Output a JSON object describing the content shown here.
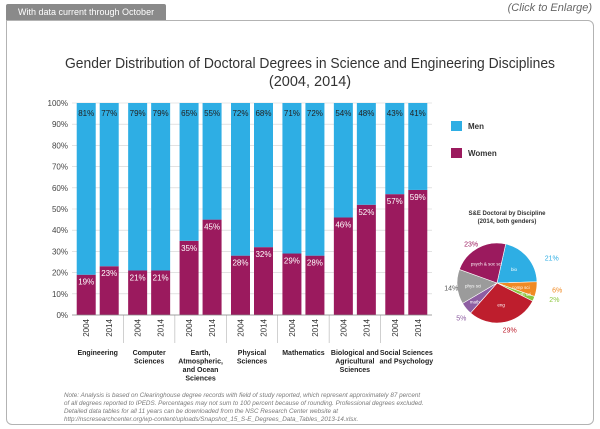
{
  "header": {
    "tab_label": "With data current through October 2014",
    "enlarge_label": "(Click to Enlarge)"
  },
  "chart_data": [
    {
      "type": "bar",
      "stacked": true,
      "title": "Gender Distribution of Doctoral Degrees in Science and Engineering Disciplines",
      "subtitle": "(2004, 2014)",
      "groups": [
        {
          "name": "Engineering",
          "name_lines": [
            "Engineering"
          ]
        },
        {
          "name": "Computer Sciences",
          "name_lines": [
            "Computer",
            "Sciences"
          ]
        },
        {
          "name": "Earth, Atmospheric, and Ocean Sciences",
          "name_lines": [
            "Earth,",
            "Atmospheric,",
            "and Ocean",
            "Sciences"
          ]
        },
        {
          "name": "Physical Sciences",
          "name_lines": [
            "Physical",
            "Sciences"
          ]
        },
        {
          "name": "Mathematics",
          "name_lines": [
            "Mathematics"
          ]
        },
        {
          "name": "Biological and Agricultural Sciences",
          "name_lines": [
            "Biological and",
            "Agricultural",
            "Sciences"
          ]
        },
        {
          "name": "Social Sciences and Psychology",
          "name_lines": [
            "Social Sciences",
            "and Psychology"
          ]
        }
      ],
      "years": [
        "2004",
        "2014"
      ],
      "series": [
        {
          "name": "Women",
          "color": "#9b1a5e",
          "values": [
            [
              19,
              23
            ],
            [
              21,
              21
            ],
            [
              35,
              45
            ],
            [
              28,
              32
            ],
            [
              29,
              28
            ],
            [
              46,
              52
            ],
            [
              57,
              59
            ]
          ]
        },
        {
          "name": "Men",
          "color": "#2eaee4",
          "values": [
            [
              81,
              77
            ],
            [
              79,
              79
            ],
            [
              65,
              55
            ],
            [
              72,
              68
            ],
            [
              71,
              72
            ],
            [
              54,
              48
            ],
            [
              43,
              41
            ]
          ]
        }
      ],
      "value_labels": {
        "women": [
          [
            "19%",
            "23%"
          ],
          [
            "21%",
            "21%"
          ],
          [
            "35%",
            "45%"
          ],
          [
            "28%",
            "32%"
          ],
          [
            "29%",
            "28%"
          ],
          [
            "46%",
            "52%"
          ],
          [
            "57%",
            "59%"
          ]
        ],
        "men": [
          [
            "81%",
            "77%"
          ],
          [
            "79%",
            "79%"
          ],
          [
            "65%",
            "55%"
          ],
          [
            "72%",
            "68%"
          ],
          [
            "71%",
            "72%"
          ],
          [
            "54%",
            "48%"
          ],
          [
            "43%",
            "41%"
          ]
        ]
      },
      "ylim": [
        0,
        100
      ],
      "yticks": [
        0,
        10,
        20,
        30,
        40,
        50,
        60,
        70,
        80,
        90,
        100
      ],
      "ytick_labels": [
        "0%",
        "10%",
        "20%",
        "30%",
        "40%",
        "50%",
        "60%",
        "70%",
        "80%",
        "90%",
        "100%"
      ],
      "legend": [
        {
          "label": "Men",
          "color": "#2eaee4"
        },
        {
          "label": "Women",
          "color": "#9b1a5e"
        }
      ],
      "legend_position": "right"
    },
    {
      "type": "pie",
      "title": "S&E Doctoral by Discipline",
      "subtitle": "(2014, both genders)",
      "slices": [
        {
          "label": "bio",
          "value": 21,
          "pct_label": "21%",
          "color": "#2eaee4"
        },
        {
          "label": "comp sci",
          "value": 6,
          "pct_label": "6%",
          "color": "#f08a24"
        },
        {
          "label": "earth sci",
          "value": 2,
          "pct_label": "2%",
          "color": "#8cc63f"
        },
        {
          "label": "eng",
          "value": 29,
          "pct_label": "29%",
          "color": "#be1e2d"
        },
        {
          "label": "math",
          "value": 5,
          "pct_label": "5%",
          "color": "#8e5ea2"
        },
        {
          "label": "phys sci",
          "value": 14,
          "pct_label": "14%",
          "color": "#9b9b9b"
        },
        {
          "label": "psych & soc sci",
          "value": 23,
          "pct_label": "23%",
          "color": "#9b1a5e"
        }
      ]
    }
  ],
  "note": "Note: Analysis is based on Clearinghouse degree records with field of study reported, which represent approximately 87 percent of all degrees reported to IPEDS. Percentages may not sum to 100 percent because of rounding. Professional degrees excluded. Detailed data tables for all 11 years can be downloaded from the NSC Research Center website at http://nscresearchcenter.org/wp-content/uploads/Snapshot_15_S-E_Degrees_Data_Tables_2013-14.xlsx."
}
